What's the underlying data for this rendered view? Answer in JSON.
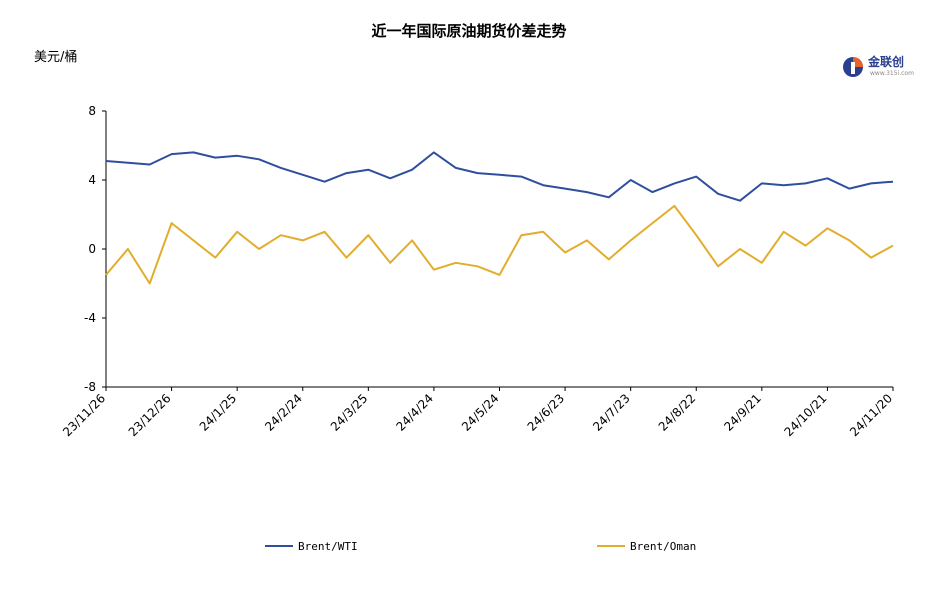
{
  "chart_data": {
    "type": "line",
    "title": "近一年国际原油期货价差走势",
    "ylabel": "美元/桶",
    "ylim": [
      -8,
      8
    ],
    "yticks": [
      "8",
      "4",
      "0",
      "-4",
      "-8"
    ],
    "x_tick_labels": [
      "23/11/26",
      "23/12/26",
      "24/1/25",
      "24/2/24",
      "24/3/25",
      "24/4/24",
      "24/5/24",
      "24/6/23",
      "24/7/23",
      "24/8/22",
      "24/9/21",
      "24/10/21",
      "24/11/20"
    ],
    "legend_position": "bottom",
    "grid": false,
    "series": [
      {
        "name": "Brent/WTI",
        "color": "#2f4f9e",
        "x": [
          "23/11/26",
          "23/12/6",
          "23/12/16",
          "23/12/26",
          "24/1/5",
          "24/1/15",
          "24/1/25",
          "24/2/4",
          "24/2/14",
          "24/2/24",
          "24/3/5",
          "24/3/15",
          "24/3/25",
          "24/4/4",
          "24/4/14",
          "24/4/24",
          "24/5/4",
          "24/5/14",
          "24/5/24",
          "24/6/3",
          "24/6/13",
          "24/6/23",
          "24/7/3",
          "24/7/13",
          "24/7/23",
          "24/8/2",
          "24/8/12",
          "24/8/22",
          "24/9/1",
          "24/9/11",
          "24/9/21",
          "24/10/1",
          "24/10/11",
          "24/10/21",
          "24/10/31",
          "24/11/10",
          "24/11/20"
        ],
        "values": [
          5.1,
          5.0,
          4.9,
          5.5,
          5.6,
          5.3,
          5.4,
          5.2,
          4.7,
          4.3,
          3.9,
          4.4,
          4.6,
          4.1,
          4.6,
          5.6,
          4.7,
          4.4,
          4.3,
          4.2,
          3.7,
          3.5,
          3.3,
          3.0,
          4.0,
          3.3,
          3.8,
          4.2,
          3.2,
          2.8,
          3.8,
          3.7,
          3.8,
          4.1,
          3.5,
          3.8,
          3.9
        ]
      },
      {
        "name": "Brent/Oman",
        "color": "#e2ad2c",
        "x": [
          "23/11/26",
          "23/12/6",
          "23/12/16",
          "23/12/26",
          "24/1/5",
          "24/1/15",
          "24/1/25",
          "24/2/4",
          "24/2/14",
          "24/2/24",
          "24/3/5",
          "24/3/15",
          "24/3/25",
          "24/4/4",
          "24/4/14",
          "24/4/24",
          "24/5/4",
          "24/5/14",
          "24/5/24",
          "24/6/3",
          "24/6/13",
          "24/6/23",
          "24/7/3",
          "24/7/13",
          "24/7/23",
          "24/8/2",
          "24/8/12",
          "24/8/22",
          "24/9/1",
          "24/9/11",
          "24/9/21",
          "24/10/1",
          "24/10/11",
          "24/10/21",
          "24/10/31",
          "24/11/10",
          "24/11/20"
        ],
        "values": [
          -1.5,
          0.0,
          -2.0,
          1.5,
          0.5,
          -0.5,
          1.0,
          0.0,
          0.8,
          0.5,
          1.0,
          -0.5,
          0.8,
          -0.8,
          0.5,
          -1.2,
          -0.8,
          -1.0,
          -1.5,
          0.8,
          1.0,
          -0.2,
          0.5,
          -0.6,
          0.5,
          1.5,
          2.5,
          0.8,
          -1.0,
          0.0,
          -0.8,
          1.0,
          0.2,
          1.2,
          0.5,
          -0.5,
          0.2
        ]
      }
    ]
  },
  "logo": {
    "name": "金联创",
    "sub": "www.315i.com"
  }
}
